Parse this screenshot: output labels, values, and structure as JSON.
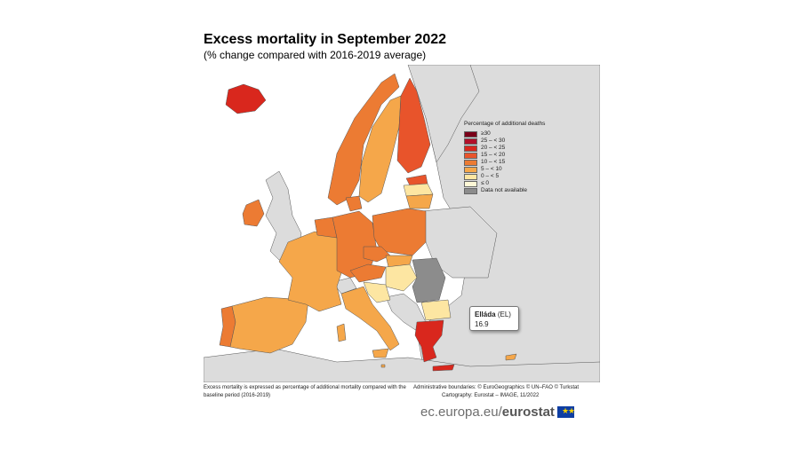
{
  "title": "Excess mortality in September 2022",
  "subtitle": "(% change compared with 2016-2019 average)",
  "legend": {
    "title": "Percentage of additional deaths",
    "classes": [
      {
        "label": "≥30",
        "color": "#7a0019"
      },
      {
        "label": "25 – < 30",
        "color": "#b2102a"
      },
      {
        "label": "20 – < 25",
        "color": "#d9271d"
      },
      {
        "label": "15 – < 20",
        "color": "#e8542b"
      },
      {
        "label": "10 – < 15",
        "color": "#ec7b33"
      },
      {
        "label": "5 – < 10",
        "color": "#f5a74a"
      },
      {
        "label": "0 – < 5",
        "color": "#fde6a2"
      },
      {
        "label": "≤ 0",
        "color": "#fff8d6"
      },
      {
        "label": "Data not available",
        "color": "#8c8c8c"
      }
    ]
  },
  "tooltip": {
    "name": "Elláda",
    "code": "(EL)",
    "value": "16.9"
  },
  "footnote_left": "Excess mortality is expressed as percentage of additional mortality compared with the baseline period (2016-2019)",
  "footnote_right": {
    "line1": "Administrative boundaries: © EuroGeographics © UN–FAO © Turkstat",
    "line2": "Cartography: Eurostat – IMAGE, 11/2022"
  },
  "brand": {
    "domain": "ec.europa.eu/",
    "name": "eurostat"
  },
  "colors": {
    "sea": "#ffffff",
    "non_eu": "#dcdcdc",
    "border": "#555555"
  }
}
